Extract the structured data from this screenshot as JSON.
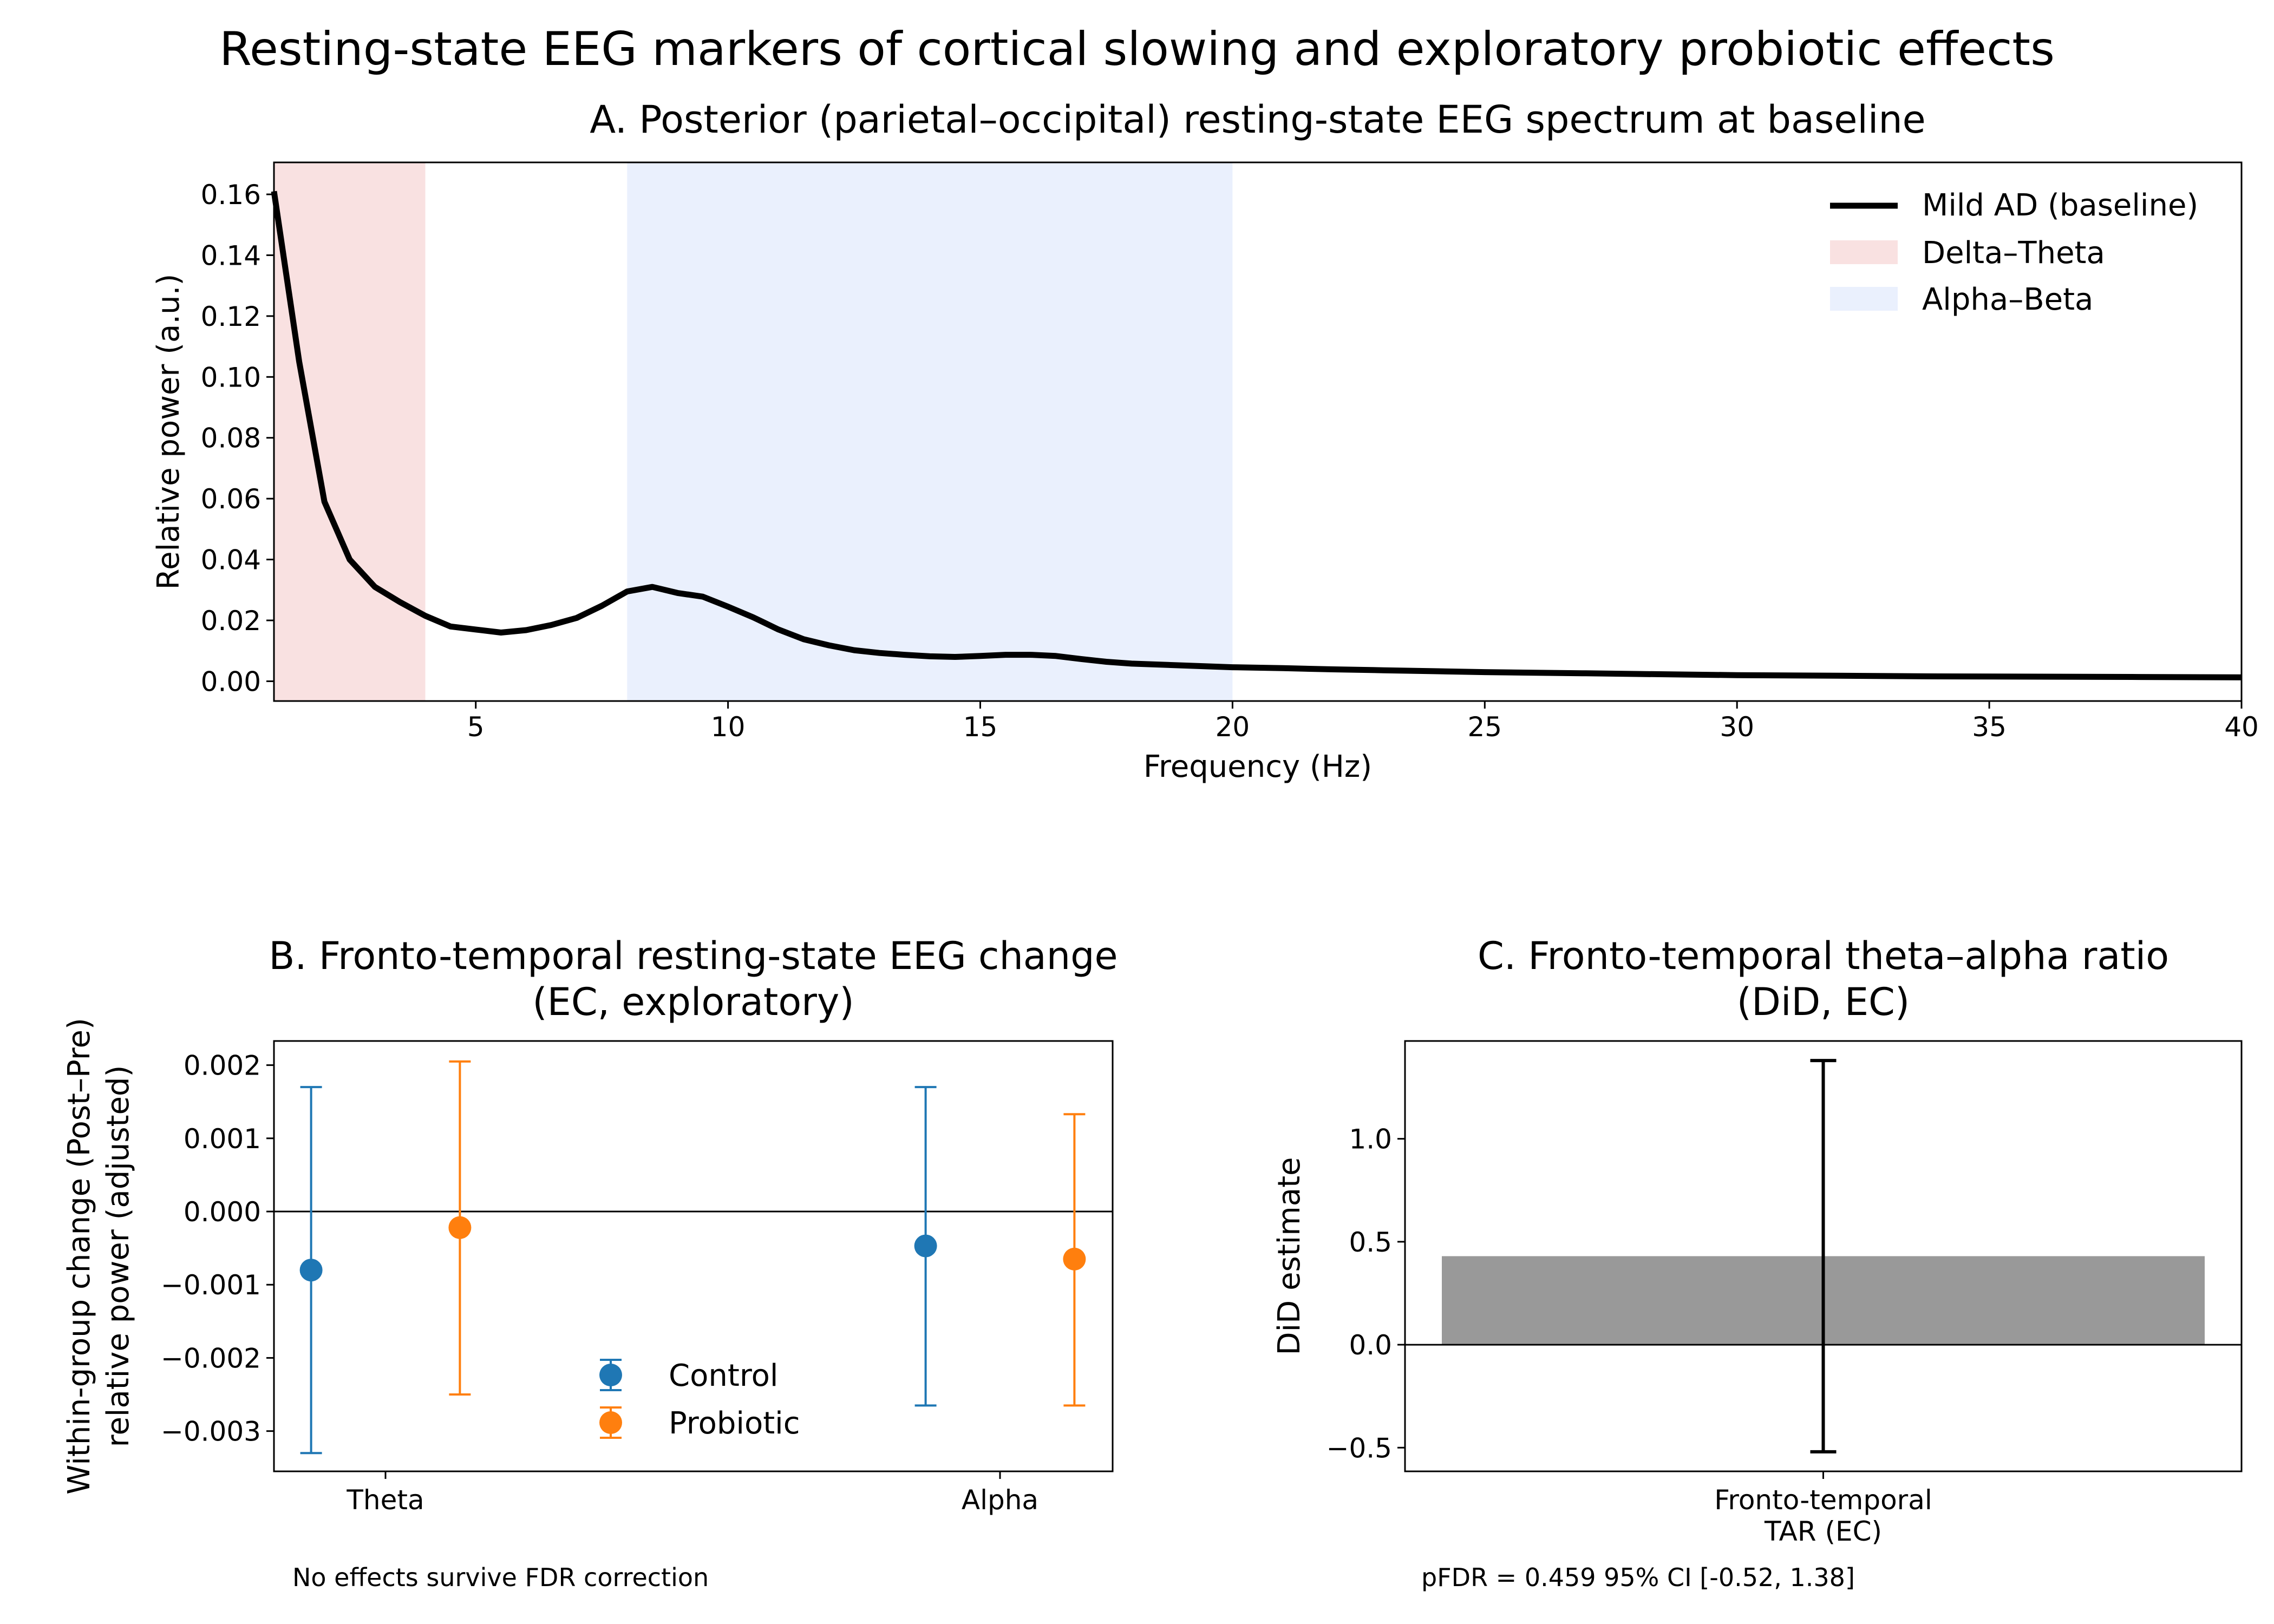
{
  "figure": {
    "suptitle": "Resting-state EEG markers of cortical slowing and exploratory probiotic effects"
  },
  "chart_data": [
    {
      "id": "A",
      "type": "line",
      "title": "A. Posterior (parietal–occipital) resting-state EEG spectrum at baseline",
      "xlabel": "Frequency (Hz)",
      "ylabel": "Relative power (a.u.)",
      "xlim": [
        1,
        40
      ],
      "ylim": [
        -0.0065,
        0.1705
      ],
      "xticks": [
        5,
        10,
        15,
        20,
        25,
        30,
        35,
        40
      ],
      "yticks": [
        0.0,
        0.02,
        0.04,
        0.06,
        0.08,
        0.1,
        0.12,
        0.14,
        0.16
      ],
      "ytick_labels": [
        "0.00",
        "0.02",
        "0.04",
        "0.06",
        "0.08",
        "0.10",
        "0.12",
        "0.14",
        "0.16"
      ],
      "grid": false,
      "legend_position": "upper right",
      "bands": [
        {
          "name": "Delta–Theta",
          "range": [
            1,
            4
          ],
          "color": "#f4c8c8"
        },
        {
          "name": "Alpha–Beta",
          "range": [
            8,
            20
          ],
          "color": "#d8e4fb"
        }
      ],
      "series": [
        {
          "name": "Mild AD (baseline)",
          "color": "#000000",
          "x": [
            1,
            1.5,
            2,
            2.5,
            3,
            3.5,
            4,
            4.5,
            5,
            5.5,
            6,
            6.5,
            7,
            7.5,
            8,
            8.5,
            9,
            9.5,
            10,
            10.5,
            11,
            11.5,
            12,
            12.5,
            13,
            13.5,
            14,
            14.5,
            15,
            15.5,
            16,
            16.5,
            17,
            17.5,
            18,
            19,
            20,
            21,
            22,
            23,
            24,
            25,
            26,
            27,
            28,
            29,
            30,
            32,
            34,
            36,
            38,
            40
          ],
          "y": [
            0.161,
            0.105,
            0.059,
            0.04,
            0.031,
            0.026,
            0.0215,
            0.018,
            0.017,
            0.016,
            0.0168,
            0.0185,
            0.0208,
            0.0248,
            0.0295,
            0.031,
            0.029,
            0.0278,
            0.0245,
            0.021,
            0.017,
            0.0138,
            0.0118,
            0.0102,
            0.0093,
            0.0087,
            0.0082,
            0.008,
            0.0083,
            0.0087,
            0.0087,
            0.0083,
            0.0073,
            0.0064,
            0.0058,
            0.0052,
            0.0046,
            0.0043,
            0.0039,
            0.0036,
            0.0033,
            0.003,
            0.0028,
            0.0026,
            0.0024,
            0.0022,
            0.002,
            0.0018,
            0.0016,
            0.0015,
            0.0014,
            0.0013
          ]
        }
      ]
    },
    {
      "id": "B",
      "type": "scatter",
      "title": "B. Fronto-temporal resting-state EEG change\n(EC, exploratory)",
      "xlabel": "",
      "ylabel": "Within-group change (Post–Pre)\nrelative power (adjusted)",
      "categories": [
        "Theta",
        "Alpha"
      ],
      "ylim": [
        -0.00355,
        0.00233
      ],
      "yticks": [
        -0.003,
        -0.002,
        -0.001,
        0.0,
        0.001,
        0.002
      ],
      "ytick_labels": [
        "−0.003",
        "−0.002",
        "−0.001",
        "0.000",
        "0.001",
        "0.002"
      ],
      "reference_line_y": 0,
      "grid": false,
      "legend_position": "lower center",
      "series": [
        {
          "name": "Control",
          "color": "#1f77b4",
          "offset": -0.12,
          "values": [
            -0.0008,
            -0.00047
          ],
          "ci_low": [
            -0.0033,
            -0.00265
          ],
          "ci_high": [
            0.0017,
            0.0017
          ]
        },
        {
          "name": "Probiotic",
          "color": "#ff7f0e",
          "offset": 0.12,
          "values": [
            -0.00022,
            -0.00065
          ],
          "ci_low": [
            -0.0025,
            -0.00265
          ],
          "ci_high": [
            0.00205,
            0.00133
          ]
        }
      ],
      "footnote": "No effects survive FDR correction"
    },
    {
      "id": "C",
      "type": "bar",
      "title": "C. Fronto-temporal theta–alpha ratio\n(DiD, EC)",
      "xlabel": "",
      "ylabel": "DiD estimate",
      "categories": [
        "Fronto-temporal\nTAR (EC)"
      ],
      "values": [
        0.43
      ],
      "ci_low": [
        -0.52
      ],
      "ci_high": [
        1.38
      ],
      "bar_color": "#999999",
      "ylim": [
        -0.615,
        1.475
      ],
      "yticks": [
        -0.5,
        0.0,
        0.5,
        1.0
      ],
      "ytick_labels": [
        "−0.5",
        "0.0",
        "0.5",
        "1.0"
      ],
      "reference_line_y": 0,
      "grid": false,
      "footnote": "pFDR = 0.459    95% CI [-0.52, 1.38]"
    }
  ]
}
